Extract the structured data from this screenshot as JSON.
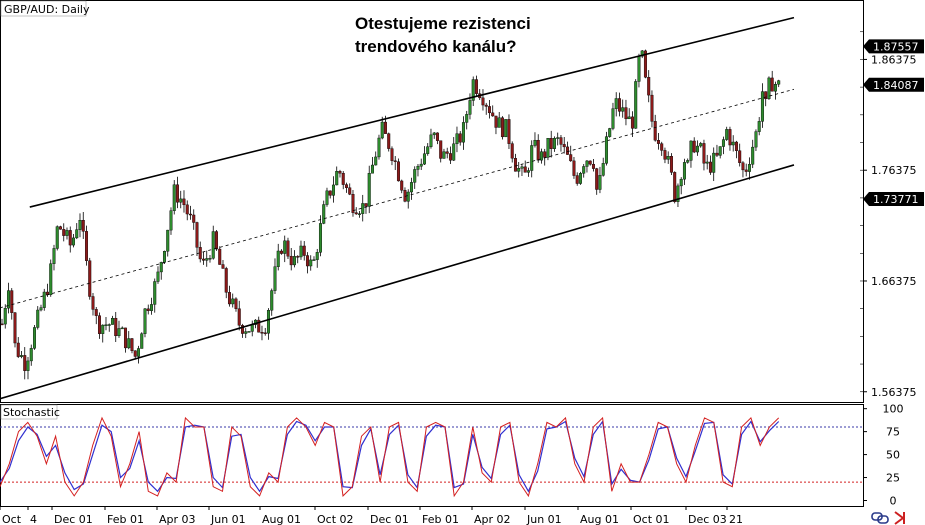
{
  "chart_data": {
    "type": "candlestick",
    "symbol_label": "GBP/AUD: Daily",
    "annotation": [
      "Otestujeme rezistenci",
      "trendového kanálu?"
    ],
    "x_labels": [
      "Oct",
      "4",
      "Dec 01",
      "Feb 01",
      "Apr 03",
      "Jun 01",
      "Aug 01",
      "Oct 02",
      "Dec 01",
      "Feb 01",
      "Apr 02",
      "Jun 01",
      "Aug 01",
      "Oct 01",
      "Dec 03",
      "21"
    ],
    "price_axis": {
      "ticks": [
        "1.86375",
        "1.76375",
        "1.66375",
        "1.56375"
      ],
      "tick_values": [
        1.86375,
        1.76375,
        1.66375,
        1.56375
      ],
      "ylim": [
        1.5545,
        1.9165
      ]
    },
    "price_badges": [
      {
        "label": "1.87557",
        "value": 1.87557
      },
      {
        "label": "1.84087",
        "value": 1.84087
      },
      {
        "label": "1.73771",
        "value": 1.73771
      }
    ],
    "channel": {
      "upper": {
        "x": [
          0.0345,
          0.92
        ],
        "y": [
          1.7305,
          1.9015
        ]
      },
      "middle": {
        "x": [
          0.0,
          0.92
        ],
        "y": [
          1.6395,
          1.8368
        ]
      },
      "lower": {
        "x": [
          0.0,
          0.92
        ],
        "y": [
          1.5575,
          1.7685
        ]
      }
    },
    "price_path": {
      "x": [
        0.0,
        0.008,
        0.015,
        0.027,
        0.04,
        0.055,
        0.065,
        0.08,
        0.09,
        0.1,
        0.11,
        0.125,
        0.14,
        0.155,
        0.165,
        0.18,
        0.19,
        0.2,
        0.21,
        0.22,
        0.232,
        0.245,
        0.26,
        0.275,
        0.29,
        0.305,
        0.315,
        0.325,
        0.338,
        0.35,
        0.36,
        0.375,
        0.39,
        0.4,
        0.405,
        0.42,
        0.43,
        0.44,
        0.45,
        0.46,
        0.468,
        0.48,
        0.49,
        0.5,
        0.51,
        0.525,
        0.535,
        0.545,
        0.555,
        0.565,
        0.575,
        0.585,
        0.595,
        0.605,
        0.615,
        0.625,
        0.633,
        0.645,
        0.655,
        0.665,
        0.675,
        0.685,
        0.69,
        0.7,
        0.71,
        0.72,
        0.73,
        0.74,
        0.745,
        0.755,
        0.765,
        0.775,
        0.78,
        0.79,
        0.795
      ],
      "y": [
        1.625,
        1.665,
        1.605,
        1.59,
        1.625,
        1.665,
        1.715,
        1.695,
        1.725,
        1.665,
        1.625,
        1.625,
        1.615,
        1.595,
        1.635,
        1.665,
        1.705,
        1.745,
        1.735,
        1.715,
        1.675,
        1.7,
        1.655,
        1.625,
        1.62,
        1.625,
        1.665,
        1.7,
        1.68,
        1.69,
        1.675,
        1.735,
        1.765,
        1.745,
        1.735,
        1.73,
        1.77,
        1.8,
        1.785,
        1.76,
        1.74,
        1.765,
        1.78,
        1.795,
        1.775,
        1.785,
        1.8,
        1.845,
        1.835,
        1.82,
        1.805,
        1.8,
        1.77,
        1.755,
        1.785,
        1.775,
        1.785,
        1.79,
        1.775,
        1.755,
        1.775,
        1.775,
        1.74,
        1.785,
        1.825,
        1.815,
        1.805,
        1.875,
        1.845,
        1.8,
        1.79,
        1.76,
        1.74,
        1.775,
        1.765
      ]
    },
    "extra_price_path": {
      "x": [
        0.795,
        0.8,
        0.81,
        0.815,
        0.83,
        0.84,
        0.85,
        0.86,
        0.875,
        0.882,
        0.885,
        0.89,
        0.9
      ],
      "y": [
        1.765,
        1.79,
        1.78,
        1.765,
        1.775,
        1.8,
        1.78,
        1.76,
        1.8,
        1.84,
        1.82,
        1.845,
        1.84
      ]
    },
    "stochastic": {
      "label": "Stochastic",
      "ticks": [
        "100",
        "75",
        "50",
        "25",
        "0"
      ],
      "tick_values": [
        100,
        75,
        50,
        25,
        0
      ],
      "levels": [
        80,
        20
      ],
      "ylim": [
        -6,
        104
      ],
      "k": [
        15,
        40,
        75,
        85,
        70,
        40,
        70,
        20,
        5,
        20,
        60,
        90,
        70,
        15,
        40,
        75,
        10,
        5,
        30,
        20,
        90,
        80,
        80,
        15,
        10,
        80,
        70,
        15,
        5,
        30,
        20,
        80,
        90,
        80,
        60,
        85,
        80,
        5,
        15,
        70,
        80,
        20,
        80,
        85,
        20,
        10,
        80,
        85,
        80,
        5,
        20,
        80,
        30,
        20,
        80,
        85,
        20,
        5,
        40,
        85,
        80,
        90,
        40,
        20,
        80,
        90,
        10,
        40,
        20,
        20,
        50,
        85,
        80,
        40,
        20,
        60,
        90,
        85,
        20,
        15,
        80,
        90,
        60,
        80,
        90
      ],
      "d": [
        20,
        35,
        65,
        80,
        72,
        48,
        60,
        30,
        12,
        18,
        50,
        82,
        75,
        25,
        35,
        65,
        20,
        10,
        25,
        24,
        80,
        82,
        80,
        25,
        14,
        70,
        72,
        25,
        10,
        26,
        24,
        72,
        86,
        82,
        65,
        80,
        80,
        15,
        14,
        60,
        78,
        28,
        72,
        82,
        28,
        14,
        70,
        82,
        80,
        14,
        18,
        72,
        36,
        24,
        72,
        82,
        28,
        10,
        32,
        78,
        80,
        86,
        46,
        26,
        72,
        86,
        18,
        34,
        22,
        20,
        44,
        78,
        80,
        46,
        26,
        54,
        84,
        85,
        28,
        18,
        72,
        86,
        64,
        76,
        86
      ]
    },
    "colors": {
      "bull_candle": "#2e8b2e",
      "bear_candle": "#8b1a1a",
      "stoch_k": "#d42020",
      "stoch_d": "#3030d0",
      "level_upper": "#3a3aaa",
      "level_lower": "#d42020",
      "badge_bg": "#000000"
    }
  }
}
